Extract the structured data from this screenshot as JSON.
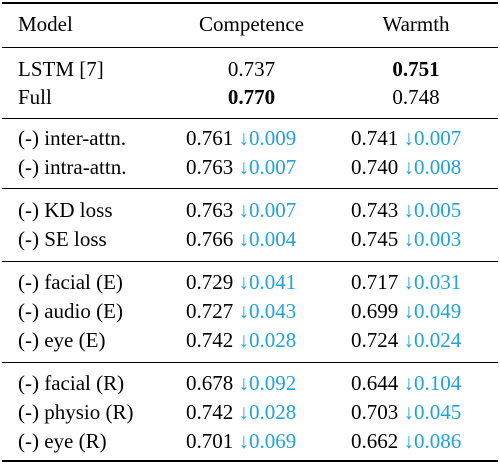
{
  "header": {
    "model": "Model",
    "competence": "Competence",
    "warmth": "Warmth"
  },
  "baselines": [
    {
      "model": "LSTM [7]",
      "competence": "0.737",
      "competence_bold": false,
      "warmth": "0.751",
      "warmth_bold": true
    },
    {
      "model": "Full",
      "competence": "0.770",
      "competence_bold": true,
      "warmth": "0.748",
      "warmth_bold": false
    }
  ],
  "groups": [
    {
      "rows": [
        {
          "model": "(-) inter-attn.",
          "competence": "0.761",
          "competence_delta": "↓0.009",
          "warmth": "0.741",
          "warmth_delta": "↓0.007"
        },
        {
          "model": "(-) intra-attn.",
          "competence": "0.763",
          "competence_delta": "↓0.007",
          "warmth": "0.740",
          "warmth_delta": "↓0.008"
        }
      ]
    },
    {
      "rows": [
        {
          "model": "(-) KD loss",
          "competence": "0.763",
          "competence_delta": "↓0.007",
          "warmth": "0.743",
          "warmth_delta": "↓0.005"
        },
        {
          "model": "(-) SE loss",
          "competence": "0.766",
          "competence_delta": "↓0.004",
          "warmth": "0.745",
          "warmth_delta": "↓0.003"
        }
      ]
    },
    {
      "rows": [
        {
          "model": "(-) facial (E)",
          "competence": "0.729",
          "competence_delta": "↓0.041",
          "warmth": "0.717",
          "warmth_delta": "↓0.031"
        },
        {
          "model": "(-) audio (E)",
          "competence": "0.727",
          "competence_delta": "↓0.043",
          "warmth": "0.699",
          "warmth_delta": "↓0.049"
        },
        {
          "model": "(-) eye (E)",
          "competence": "0.742",
          "competence_delta": "↓0.028",
          "warmth": "0.724",
          "warmth_delta": "↓0.024"
        }
      ]
    },
    {
      "rows": [
        {
          "model": "(-) facial (R)",
          "competence": "0.678",
          "competence_delta": "↓0.092",
          "warmth": "0.644",
          "warmth_delta": "↓0.104"
        },
        {
          "model": "(-) physio (R)",
          "competence": "0.742",
          "competence_delta": "↓0.028",
          "warmth": "0.703",
          "warmth_delta": "↓0.045"
        },
        {
          "model": "(-) eye (R)",
          "competence": "0.701",
          "competence_delta": "↓0.069",
          "warmth": "0.662",
          "warmth_delta": "↓0.086"
        }
      ]
    }
  ],
  "colors": {
    "delta": "#1fa3dc",
    "text": "#000000"
  }
}
